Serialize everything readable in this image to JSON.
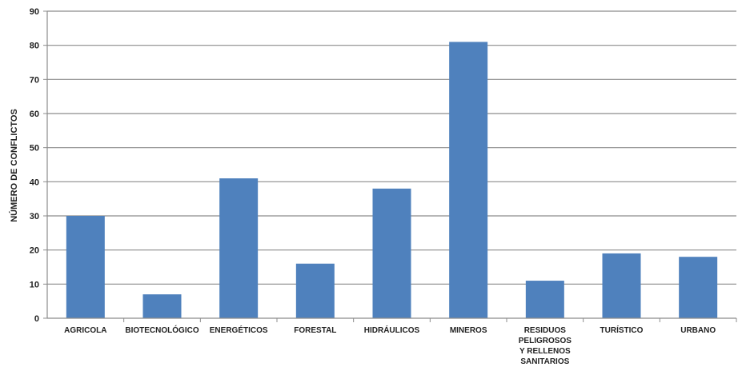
{
  "chart_data": {
    "type": "bar",
    "title": "",
    "xlabel": "",
    "ylabel": "NÚMERO DE CONFLICTOS",
    "ylim": [
      0,
      90
    ],
    "yticks": [
      0,
      10,
      20,
      30,
      40,
      50,
      60,
      70,
      80,
      90
    ],
    "grid": true,
    "bar_color": "#4f81bd",
    "categories": [
      "AGRICOLA",
      "BIOTECNOLÓGICO",
      "ENERGÉTICOS",
      "FORESTAL",
      "HIDRÁULICOS",
      "MINEROS",
      "RESIDUOS PELIGROSOS Y RELLENOS SANITARIOS",
      "TURÍSTICO",
      "URBANO"
    ],
    "values": [
      30,
      7,
      41,
      16,
      38,
      81,
      11,
      19,
      18
    ]
  }
}
